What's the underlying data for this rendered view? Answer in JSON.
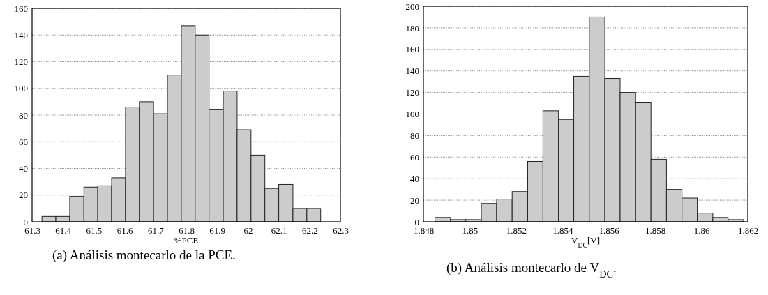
{
  "chart_data": [
    {
      "type": "histogram",
      "xlabel": "%PCE",
      "color": "#cccccc",
      "grid": "y",
      "bins": [
        61.332,
        61.377,
        61.422,
        61.468,
        61.513,
        61.558,
        61.603,
        61.648,
        61.694,
        61.739,
        61.784,
        61.829,
        61.874,
        61.92,
        61.965,
        62.01,
        62.055,
        62.1,
        62.146,
        62.191,
        62.236
      ],
      "values": [
        4,
        4,
        19,
        26,
        27,
        33,
        86,
        90,
        81,
        110,
        147,
        140,
        84,
        98,
        69,
        50,
        25,
        28,
        10,
        10
      ],
      "xlim": [
        61.3,
        62.3
      ],
      "xticks": [
        61.3,
        61.4,
        61.5,
        61.6,
        61.7,
        61.8,
        61.9,
        62,
        62.1,
        62.2,
        62.3
      ],
      "ylim": [
        0,
        160
      ],
      "yticks": [
        0,
        20,
        40,
        60,
        80,
        100,
        120,
        140,
        160
      ],
      "annotations": [
        "(a) Análisis montecarlo de la PCE."
      ]
    },
    {
      "type": "histogram",
      "xlabel": "V$_{DC}$[V]",
      "color": "#cccccc",
      "grid": "y",
      "bins": [
        1.8485,
        1.84917,
        1.84983,
        1.8505,
        1.85116,
        1.85183,
        1.8525,
        1.85316,
        1.85383,
        1.85449,
        1.85516,
        1.85583,
        1.85649,
        1.85716,
        1.85782,
        1.85849,
        1.85916,
        1.85982,
        1.86049,
        1.86115,
        1.86182
      ],
      "values": [
        4,
        2,
        2,
        17,
        21,
        28,
        56,
        103,
        95,
        135,
        190,
        133,
        120,
        111,
        58,
        30,
        22,
        8,
        4,
        2
      ],
      "xlim": [
        1.848,
        1.862
      ],
      "xticks": [
        1.848,
        1.85,
        1.852,
        1.854,
        1.856,
        1.858,
        1.86,
        1.862
      ],
      "ylim": [
        0,
        200
      ],
      "yticks": [
        0,
        20,
        40,
        60,
        80,
        100,
        120,
        140,
        160,
        180,
        200
      ],
      "annotations": [
        "(b) Análisis montecarlo de V$_{DC}$."
      ]
    }
  ]
}
